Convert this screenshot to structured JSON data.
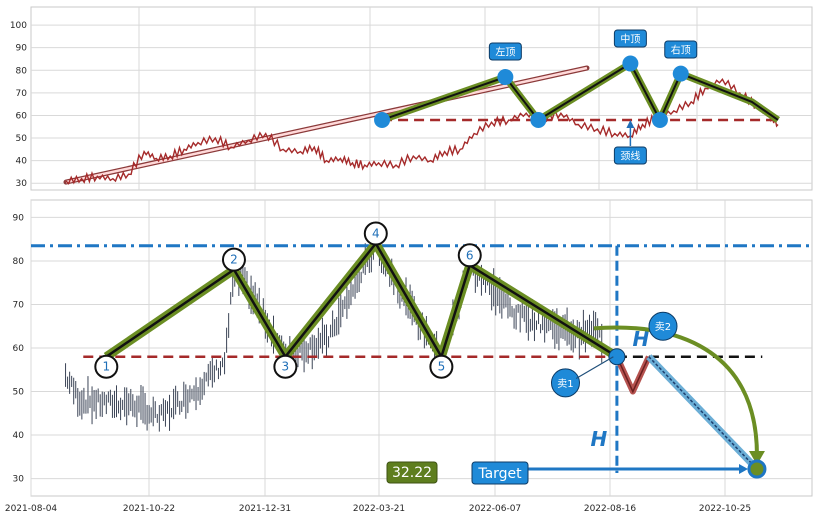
{
  "colors": {
    "price": "#a52a2a",
    "candle": "#3b4456",
    "zigzag_outer": "#6b8e23",
    "zigzag_inner": "#111111",
    "neckline": "#a52a2a",
    "target_line": "#1f77c4",
    "node": "#1f8ad8",
    "grid": "#d9d9d9"
  },
  "chart_data": [
    {
      "type": "line",
      "panel": "top",
      "ylim": [
        27,
        108
      ],
      "yticks": [
        30,
        40,
        50,
        60,
        70,
        80,
        90,
        100
      ],
      "x": [
        0,
        9,
        18,
        27,
        36,
        45,
        52,
        60,
        68,
        76,
        86,
        95,
        105,
        115,
        125,
        135,
        143,
        150,
        158,
        165,
        172,
        180,
        190,
        200,
        210,
        218,
        227,
        235,
        245,
        255,
        265,
        275,
        285,
        295,
        306,
        316,
        325,
        332,
        340,
        350,
        360,
        368,
        378,
        388,
        398,
        405,
        410
      ],
      "series": [
        {
          "values": [
            31,
            32,
            33,
            32,
            34,
            44,
            41,
            42,
            45,
            48,
            50,
            46,
            49,
            52,
            45,
            44,
            46,
            40,
            41,
            39,
            38,
            39,
            38,
            42,
            40,
            44,
            45,
            52,
            57,
            58,
            61,
            59,
            61,
            56,
            54,
            52,
            51,
            56,
            59,
            62,
            66,
            72,
            76,
            70,
            64,
            60,
            56
          ]
        }
      ],
      "annotations": [
        {
          "text": "左顶",
          "x": 253,
          "y": 77
        },
        {
          "text": "中顶",
          "x": 325,
          "y": 84
        },
        {
          "text": "右顶",
          "x": 354,
          "y": 78
        },
        {
          "text": "颈线",
          "x": 325,
          "y": 60
        }
      ],
      "neckline_y": 58
    },
    {
      "type": "line",
      "panel": "bottom",
      "ylim": [
        26,
        94
      ],
      "yticks": [
        30,
        40,
        50,
        60,
        70,
        80,
        90
      ],
      "xticks": [
        "2021-08-04",
        "2021-10-22",
        "2021-12-31",
        "2022-03-21",
        "2022-06-07",
        "2022-08-16",
        "2022-10-25"
      ],
      "xlim": [
        0,
        405
      ],
      "pattern_points": [
        {
          "label": "1",
          "x": 25,
          "y": 58
        },
        {
          "label": "2",
          "x": 97,
          "y": 78
        },
        {
          "label": "3",
          "x": 126,
          "y": 58
        },
        {
          "label": "4",
          "x": 177,
          "y": 84
        },
        {
          "label": "5",
          "x": 214,
          "y": 58
        },
        {
          "label": "6",
          "x": 230,
          "y": 79
        },
        {
          "label": "",
          "x": 313,
          "y": 58
        }
      ],
      "neckline_y": 58,
      "resistance_y": 83.5,
      "target_y": 32.2,
      "target_value": "32.22",
      "labels": {
        "target": "Target",
        "sell1": "卖1",
        "sell2": "卖2",
        "h": "H"
      }
    }
  ]
}
